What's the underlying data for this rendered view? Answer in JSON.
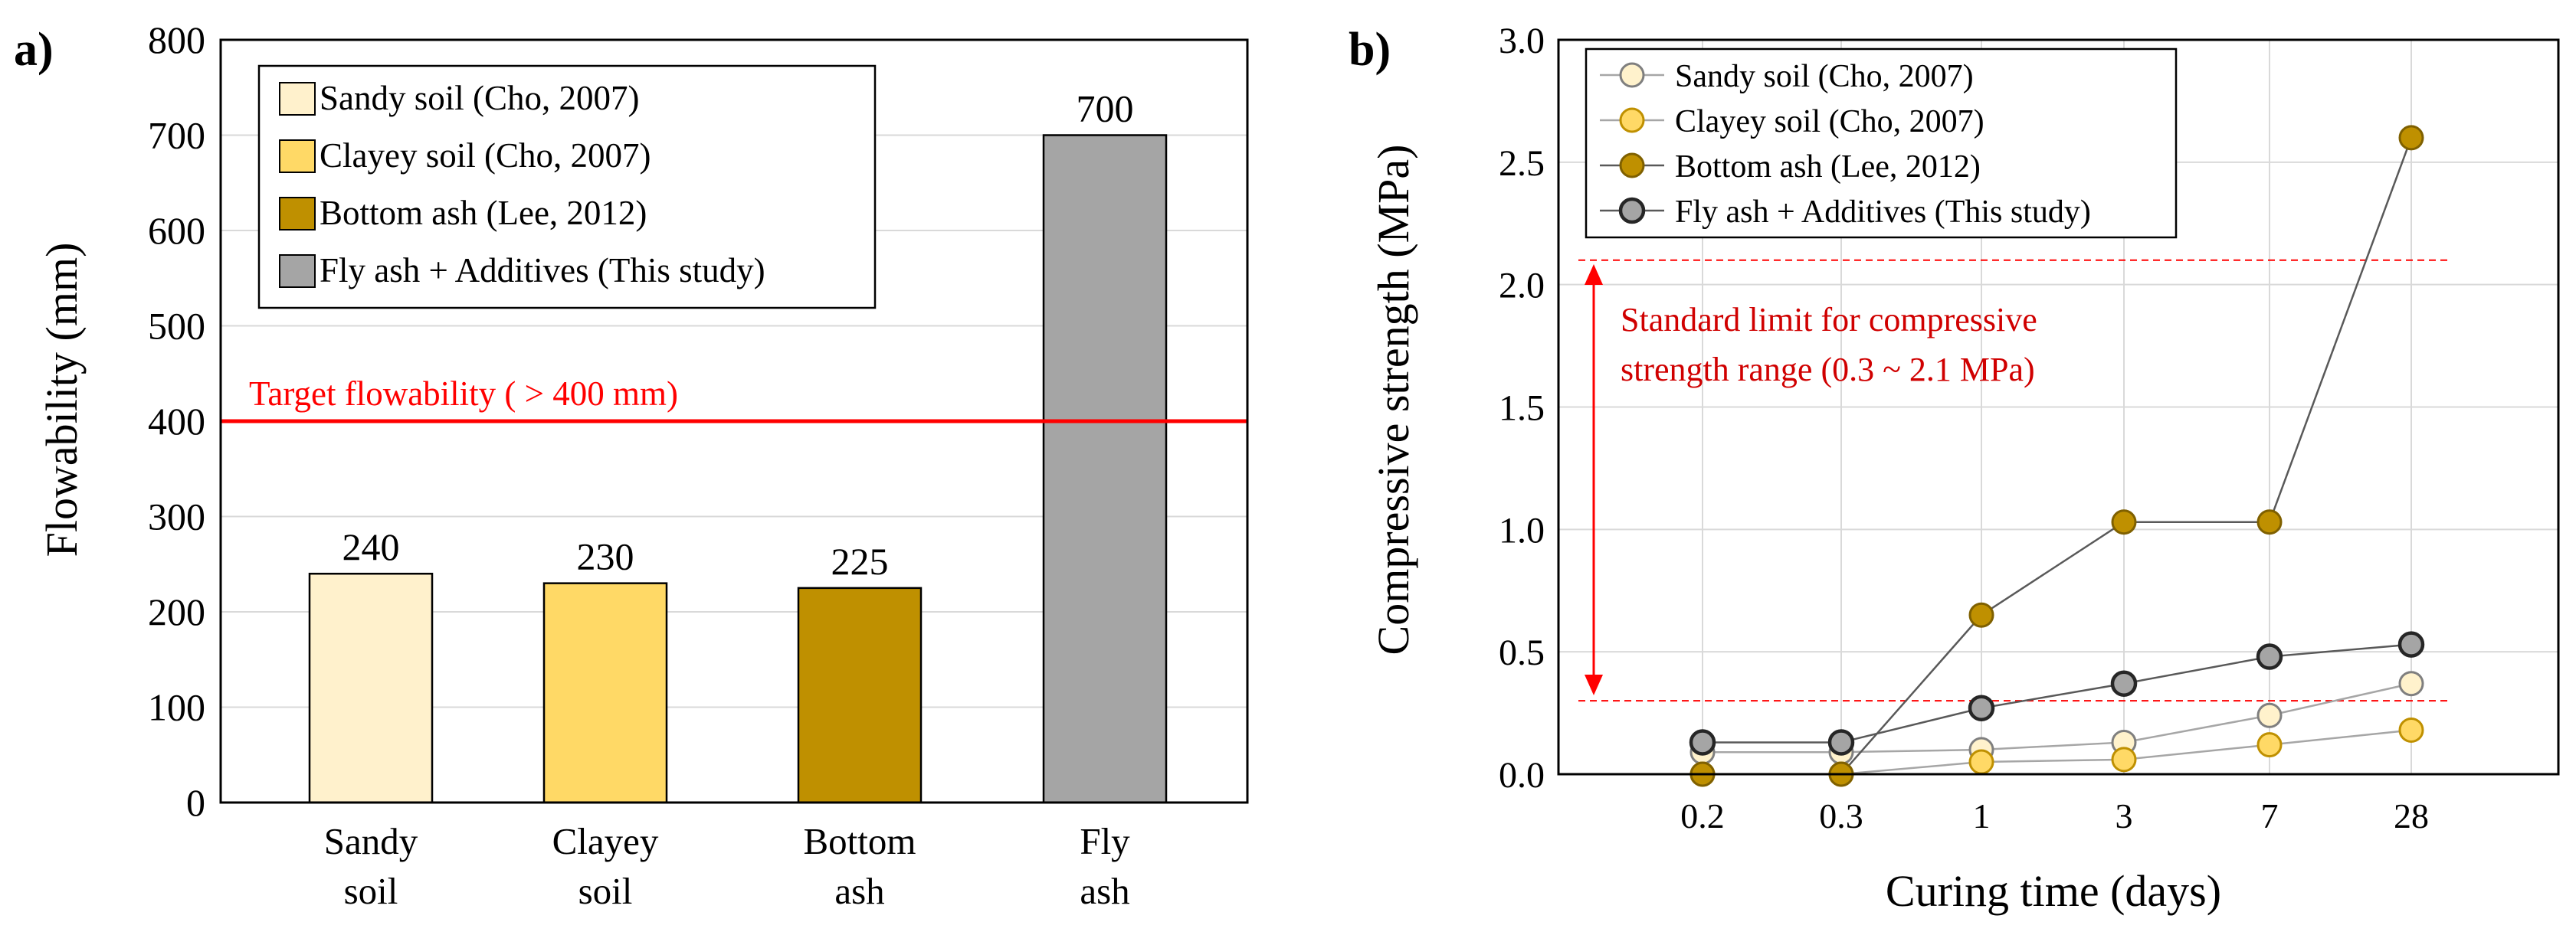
{
  "panel_a": {
    "panel_label": "a)",
    "legend": [
      {
        "label": "Sandy soil (Cho, 2007)",
        "color": "#FFF1CC"
      },
      {
        "label": "Clayey soil (Cho, 2007)",
        "color": "#FFD966"
      },
      {
        "label": "Bottom ash (Lee, 2012)",
        "color": "#BF9000"
      },
      {
        "label": "Fly ash + Additives (This study)",
        "color": "#A5A5A5"
      }
    ],
    "target_label": "Target flowability ( > 400 mm)",
    "category_labels": [
      [
        "Sandy",
        "soil"
      ],
      [
        "Clayey",
        "soil"
      ],
      [
        "Bottom",
        "ash"
      ],
      [
        "Fly",
        "ash"
      ]
    ]
  },
  "panel_b": {
    "panel_label": "b)",
    "legend": [
      {
        "label": "Sandy soil (Cho, 2007)",
        "color": "#FFF2CC"
      },
      {
        "label": "Clayey soil (Cho, 2007)",
        "color": "#FFD966"
      },
      {
        "label": "Bottom ash (Lee, 2012)",
        "color": "#BF9000"
      },
      {
        "label": "Fly ash + Additives (This study)",
        "color": "#A5A5A5"
      }
    ],
    "annotation": [
      "Standard limit for compressive",
      "strength range (0.3 ~ 2.1 MPa)"
    ]
  },
  "chart_data": [
    {
      "type": "bar",
      "title": "",
      "categories": [
        "Sandy soil",
        "Clayey soil",
        "Bottom ash",
        "Fly ash"
      ],
      "values": [
        240,
        230,
        225,
        700
      ],
      "value_labels": [
        "240",
        "230",
        "225",
        "700"
      ],
      "colors": [
        "#FFF1CC",
        "#FFD966",
        "#BF9000",
        "#A5A5A5"
      ],
      "xlabel": "",
      "ylabel": "Flowability (mm)",
      "ylim": [
        0,
        800
      ],
      "yticks": [
        0,
        100,
        200,
        300,
        400,
        500,
        600,
        700,
        800
      ],
      "grid": true,
      "reference_line": {
        "value": 400,
        "color": "#FF0000",
        "label": "Target flowability ( > 400 mm)"
      },
      "legend_position": "top-left"
    },
    {
      "type": "line",
      "title": "",
      "xlabel": "Curing time (days)",
      "ylabel": "Compressive strength (MPa)",
      "x": [
        "0.2",
        "0.3",
        "1",
        "3",
        "7",
        "28"
      ],
      "ylim": [
        0,
        3.0
      ],
      "yticks": [
        0.0,
        0.5,
        1.0,
        1.5,
        2.0,
        2.5,
        3.0
      ],
      "ytick_labels": [
        "0.0",
        "0.5",
        "1.0",
        "1.5",
        "2.0",
        "2.5",
        "3.0"
      ],
      "grid": true,
      "reference_lines": [
        {
          "value": 0.3,
          "color": "#FF0000",
          "style": "dashed"
        },
        {
          "value": 2.1,
          "color": "#FF0000",
          "style": "dashed"
        }
      ],
      "legend_position": "top-left",
      "series": [
        {
          "name": "Sandy soil (Cho, 2007)",
          "values": [
            0.09,
            0.09,
            0.1,
            0.13,
            0.24,
            0.37
          ],
          "color": "#FFF2CC"
        },
        {
          "name": "Clayey soil (Cho, 2007)",
          "values": [
            0.0,
            0.0,
            0.05,
            0.06,
            0.12,
            0.18
          ],
          "color": "#FFD966"
        },
        {
          "name": "Bottom ash (Lee, 2012)",
          "values": [
            0.0,
            0.0,
            0.65,
            1.03,
            1.03,
            2.6
          ],
          "color": "#BF9000"
        },
        {
          "name": "Fly ash + Additives (This study)",
          "values": [
            0.13,
            0.13,
            0.27,
            0.37,
            0.48,
            0.53
          ],
          "color": "#A5A5A5"
        }
      ]
    }
  ]
}
